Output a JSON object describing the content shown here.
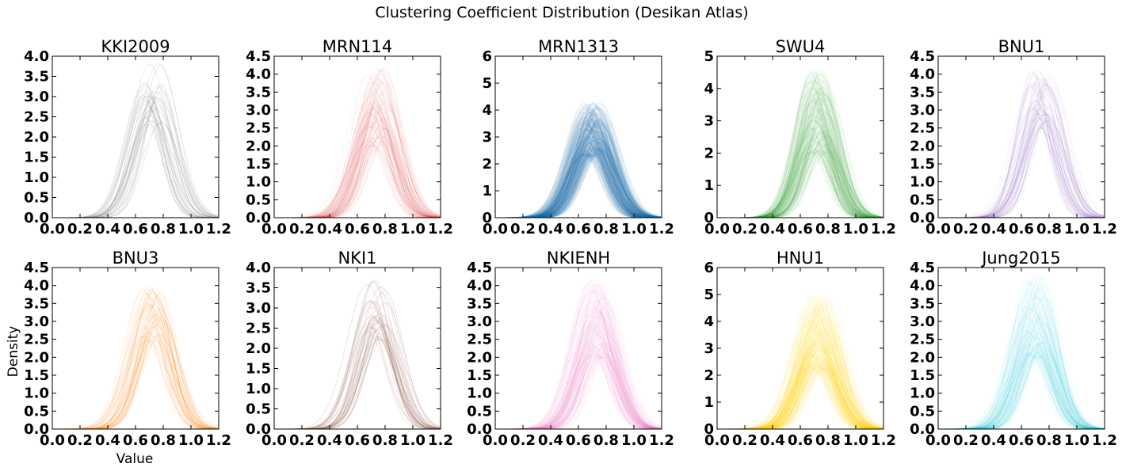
{
  "figure": {
    "title": "Clustering Coefficient Distribution (Desikan Atlas)",
    "xlabel": "Value",
    "ylabel": "Density"
  },
  "chart_data": [
    {
      "type": "line",
      "title": "KKI2009",
      "color": "#7f7f7f",
      "curves": 40,
      "ylim": [
        0,
        4.0
      ],
      "yticks": [
        "0.0",
        "0.5",
        "1.0",
        "1.5",
        "2.0",
        "2.5",
        "3.0",
        "3.5",
        "4.0"
      ],
      "xlim": [
        0,
        1.2
      ],
      "xticks": [
        "0.0",
        "0.2",
        "0.4",
        "0.6",
        "0.8",
        "1.0",
        "1.2"
      ],
      "peak_x": 0.72,
      "peak_range": [
        2.3,
        3.9
      ],
      "sd": 0.13
    },
    {
      "type": "line",
      "title": "MRN114",
      "color": "#d62728",
      "curves": 110,
      "ylim": [
        0,
        4.5
      ],
      "yticks": [
        "0.0",
        "0.5",
        "1.0",
        "1.5",
        "2.0",
        "2.5",
        "3.0",
        "3.5",
        "4.0",
        "4.5"
      ],
      "xlim": [
        0,
        1.2
      ],
      "xticks": [
        "0.0",
        "0.2",
        "0.4",
        "0.6",
        "0.8",
        "1.0",
        "1.2"
      ],
      "peak_x": 0.74,
      "peak_range": [
        2.0,
        4.2
      ],
      "sd": 0.13
    },
    {
      "type": "line",
      "title": "MRN1313",
      "color": "#1f77b4",
      "curves": 500,
      "ylim": [
        0,
        6
      ],
      "yticks": [
        "0",
        "1",
        "2",
        "3",
        "4",
        "5",
        "6"
      ],
      "xlim": [
        0,
        1.2
      ],
      "xticks": [
        "0.0",
        "0.2",
        "0.4",
        "0.6",
        "0.8",
        "1.0",
        "1.2"
      ],
      "peak_x": 0.7,
      "peak_range": [
        2.3,
        4.3
      ],
      "sd": 0.13
    },
    {
      "type": "line",
      "title": "SWU4",
      "color": "#2ca02c",
      "curves": 230,
      "ylim": [
        0,
        5
      ],
      "yticks": [
        "0",
        "1",
        "2",
        "3",
        "4",
        "5"
      ],
      "xlim": [
        0,
        1.2
      ],
      "xticks": [
        "0.0",
        "0.2",
        "0.4",
        "0.6",
        "0.8",
        "1.0",
        "1.2"
      ],
      "peak_x": 0.73,
      "peak_range": [
        2.0,
        4.6
      ],
      "sd": 0.12
    },
    {
      "type": "line",
      "title": "BNU1",
      "color": "#9467bd",
      "curves": 55,
      "ylim": [
        0,
        4.5
      ],
      "yticks": [
        "0.0",
        "0.5",
        "1.0",
        "1.5",
        "2.0",
        "2.5",
        "3.0",
        "3.5",
        "4.0",
        "4.5"
      ],
      "xlim": [
        0,
        1.2
      ],
      "xticks": [
        "0.0",
        "0.2",
        "0.4",
        "0.6",
        "0.8",
        "1.0",
        "1.2"
      ],
      "peak_x": 0.74,
      "peak_range": [
        2.5,
        4.2
      ],
      "sd": 0.13
    },
    {
      "type": "line",
      "title": "BNU3",
      "color": "#ff7f0e",
      "curves": 48,
      "ylim": [
        0,
        4.5
      ],
      "yticks": [
        "0.0",
        "0.5",
        "1.0",
        "1.5",
        "2.0",
        "2.5",
        "3.0",
        "3.5",
        "4.0",
        "4.5"
      ],
      "xlim": [
        0,
        1.2
      ],
      "xticks": [
        "0.0",
        "0.2",
        "0.4",
        "0.6",
        "0.8",
        "1.0",
        "1.2"
      ],
      "peak_x": 0.72,
      "peak_range": [
        2.4,
        4.0
      ],
      "sd": 0.13
    },
    {
      "type": "line",
      "title": "NKI1",
      "color": "#8c564b",
      "curves": 40,
      "ylim": [
        0,
        4.0
      ],
      "yticks": [
        "0.0",
        "0.5",
        "1.0",
        "1.5",
        "2.0",
        "2.5",
        "3.0",
        "3.5",
        "4.0"
      ],
      "xlim": [
        0,
        1.2
      ],
      "xticks": [
        "0.0",
        "0.2",
        "0.4",
        "0.6",
        "0.8",
        "1.0",
        "1.2"
      ],
      "peak_x": 0.74,
      "peak_range": [
        2.2,
        3.7
      ],
      "sd": 0.13
    },
    {
      "type": "line",
      "title": "NKIENH",
      "color": "#e377c2",
      "curves": 180,
      "ylim": [
        0,
        4.5
      ],
      "yticks": [
        "0.0",
        "0.5",
        "1.0",
        "1.5",
        "2.0",
        "2.5",
        "3.0",
        "3.5",
        "4.0",
        "4.5"
      ],
      "xlim": [
        0,
        1.2
      ],
      "xticks": [
        "0.0",
        "0.2",
        "0.4",
        "0.6",
        "0.8",
        "1.0",
        "1.2"
      ],
      "peak_x": 0.74,
      "peak_range": [
        2.0,
        4.2
      ],
      "sd": 0.13
    },
    {
      "type": "line",
      "title": "HNU1",
      "color": "#ffd700",
      "curves": 300,
      "ylim": [
        0,
        6
      ],
      "yticks": [
        "0",
        "1",
        "2",
        "3",
        "4",
        "5",
        "6"
      ],
      "xlim": [
        0,
        1.2
      ],
      "xticks": [
        "0.0",
        "0.2",
        "0.4",
        "0.6",
        "0.8",
        "1.0",
        "1.2"
      ],
      "peak_x": 0.73,
      "peak_range": [
        2.2,
        5.0
      ],
      "sd": 0.13
    },
    {
      "type": "line",
      "title": "Jung2015",
      "color": "#17becf",
      "curves": 150,
      "ylim": [
        0,
        4.5
      ],
      "yticks": [
        "0.0",
        "0.5",
        "1.0",
        "1.5",
        "2.0",
        "2.5",
        "3.0",
        "3.5",
        "4.0",
        "4.5"
      ],
      "xlim": [
        0,
        1.2
      ],
      "xticks": [
        "0.0",
        "0.2",
        "0.4",
        "0.6",
        "0.8",
        "1.0",
        "1.2"
      ],
      "peak_x": 0.7,
      "peak_range": [
        2.0,
        4.3
      ],
      "sd": 0.13
    }
  ]
}
